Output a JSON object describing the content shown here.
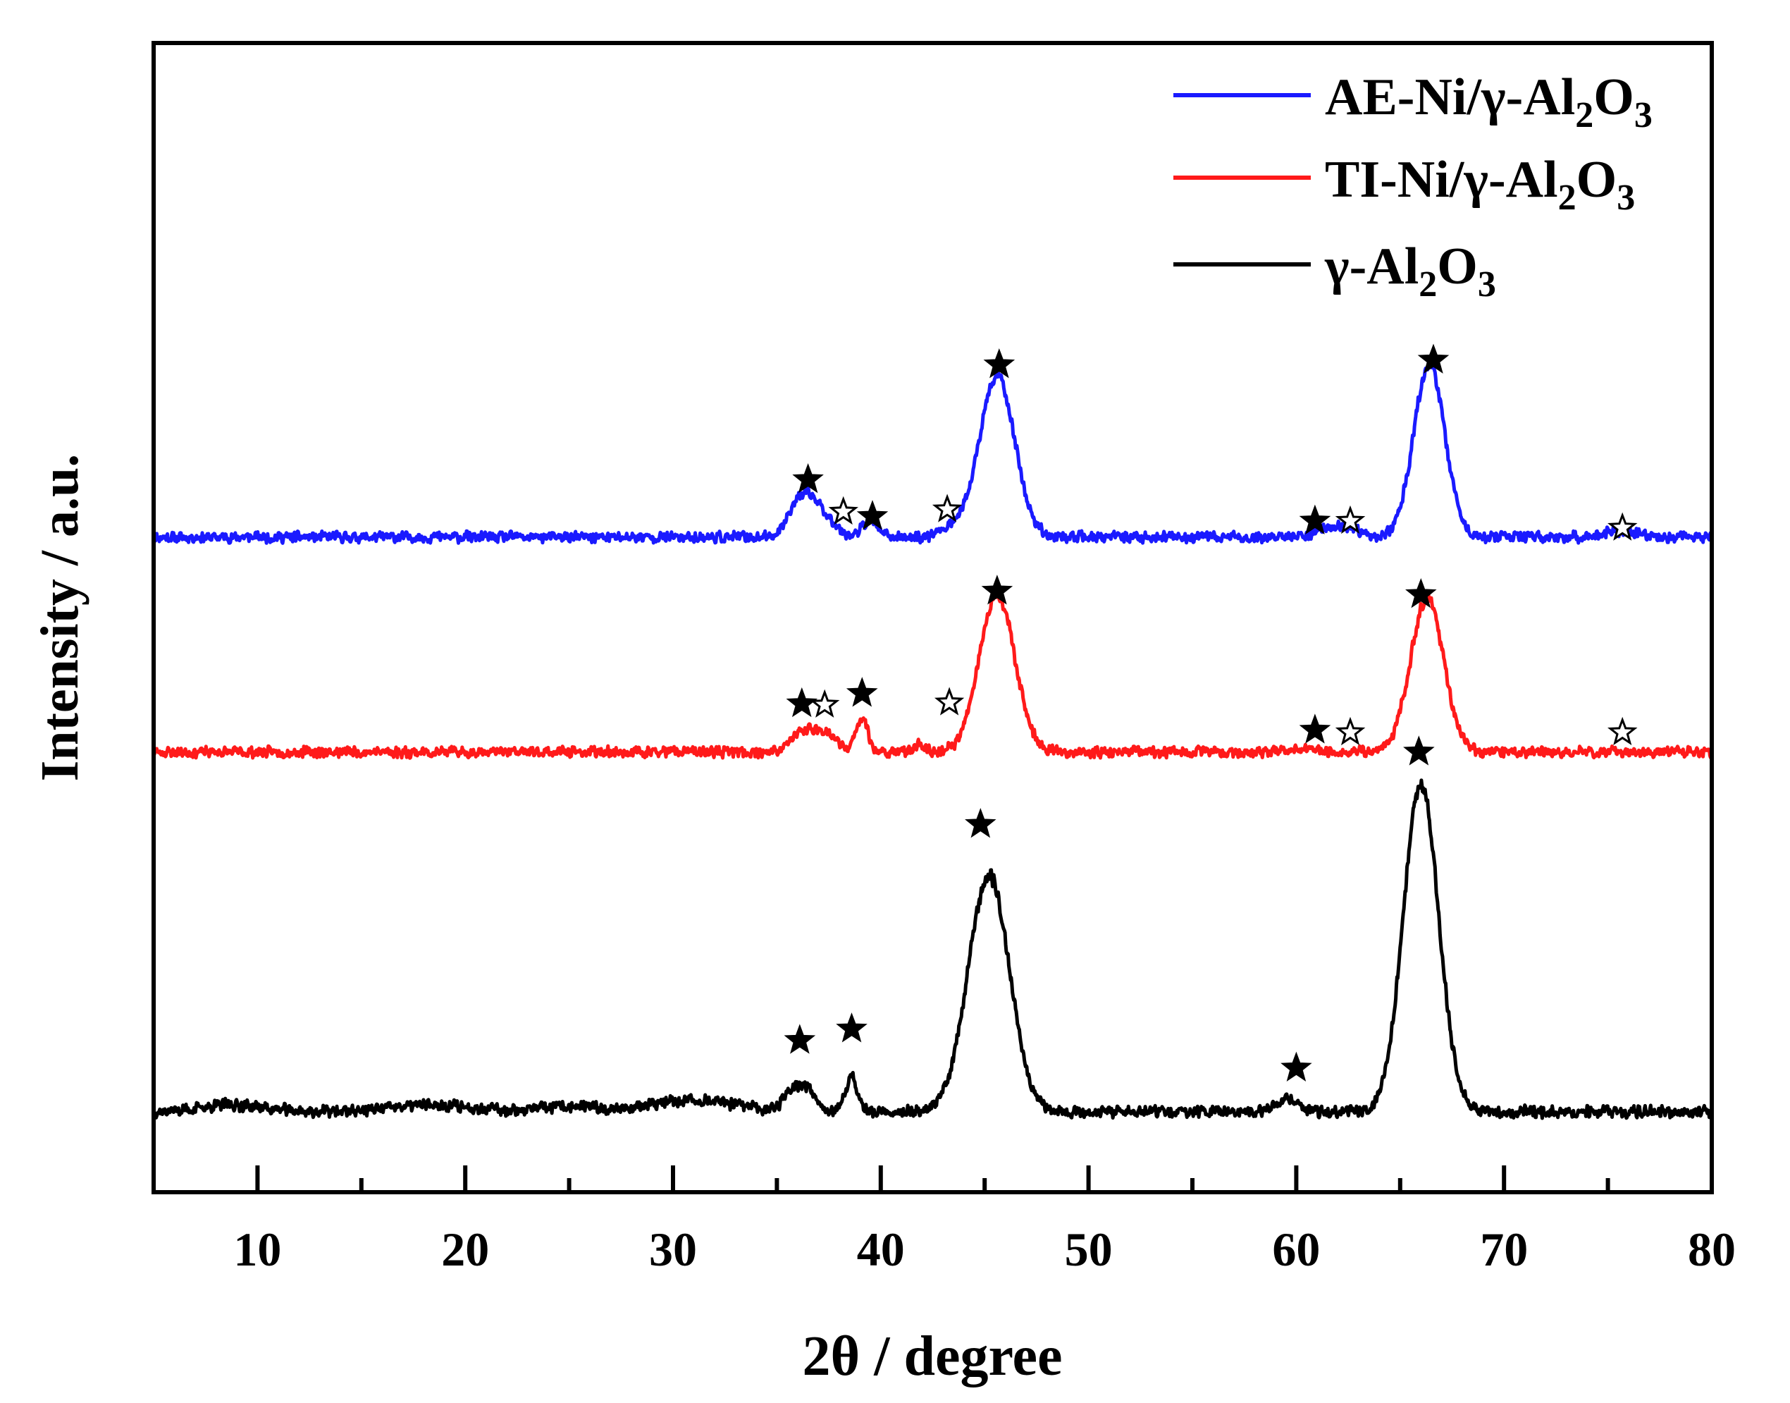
{
  "chart_data": {
    "type": "line",
    "title": "",
    "xlabel": "2θ / degree",
    "ylabel": "Intensity / a.u.",
    "xlim": [
      5,
      80
    ],
    "ylim": [
      0,
      100
    ],
    "x_major_ticks": [
      10,
      20,
      30,
      40,
      50,
      60,
      70,
      80
    ],
    "x_tick_labels": [
      "10",
      "20",
      "30",
      "40",
      "50",
      "60",
      "70",
      "80"
    ],
    "y_tick_labels": [],
    "grid": false,
    "legend_position": "top-right",
    "legend": [
      {
        "base": "AE-Ni/γ-Al",
        "sub1": "2",
        "mid": "O",
        "sub2": "3",
        "color": "#1a1aff"
      },
      {
        "base": "TI-Ni/γ-Al",
        "sub1": "2",
        "mid": "O",
        "sub2": "3",
        "color": "#ff1a1a"
      },
      {
        "base": "γ-Al",
        "sub1": "2",
        "mid": "O",
        "sub2": "3",
        "color": "#000000"
      }
    ],
    "series": [
      {
        "name": "AE-Ni/γ-Al2O3",
        "color": "#1a1aff",
        "baseline": 57.0,
        "noise": 0.55,
        "seed": 11,
        "peaks": [
          [
            35.8,
            1.8,
            0.45
          ],
          [
            36.6,
            3.2,
            0.55
          ],
          [
            37.6,
            1.0,
            0.5
          ],
          [
            39.5,
            1.6,
            0.35
          ],
          [
            43.4,
            0.8,
            0.6
          ],
          [
            45.6,
            14.0,
            0.85
          ],
          [
            61.5,
            0.7,
            0.7
          ],
          [
            62.5,
            0.6,
            0.5
          ],
          [
            66.4,
            15.0,
            0.75
          ],
          [
            75.5,
            0.5,
            0.8
          ]
        ],
        "markers": [
          {
            "x": 36.5,
            "y": 62.0,
            "type": "filled"
          },
          {
            "x": 38.2,
            "y": 59.2,
            "type": "open"
          },
          {
            "x": 39.6,
            "y": 58.8,
            "type": "filled"
          },
          {
            "x": 43.2,
            "y": 59.4,
            "type": "open"
          },
          {
            "x": 45.7,
            "y": 72.0,
            "type": "filled"
          },
          {
            "x": 60.9,
            "y": 58.4,
            "type": "filled"
          },
          {
            "x": 62.6,
            "y": 58.4,
            "type": "open"
          },
          {
            "x": 66.6,
            "y": 72.4,
            "type": "filled"
          },
          {
            "x": 75.7,
            "y": 57.8,
            "type": "open"
          }
        ]
      },
      {
        "name": "TI-Ni/γ-Al2O3",
        "color": "#ff1a1a",
        "baseline": 38.3,
        "noise": 0.55,
        "seed": 23,
        "peaks": [
          [
            36.0,
            1.0,
            0.5
          ],
          [
            36.8,
            1.4,
            0.6
          ],
          [
            37.5,
            0.9,
            0.5
          ],
          [
            39.1,
            3.0,
            0.28
          ],
          [
            41.8,
            0.6,
            0.3
          ],
          [
            45.6,
            13.8,
            0.85
          ],
          [
            60.5,
            0.4,
            0.5
          ],
          [
            66.3,
            13.4,
            0.8
          ]
        ],
        "markers": [
          {
            "x": 36.2,
            "y": 42.5,
            "type": "filled"
          },
          {
            "x": 37.3,
            "y": 42.4,
            "type": "open"
          },
          {
            "x": 39.1,
            "y": 43.4,
            "type": "filled"
          },
          {
            "x": 43.3,
            "y": 42.6,
            "type": "open"
          },
          {
            "x": 45.6,
            "y": 52.3,
            "type": "filled"
          },
          {
            "x": 60.9,
            "y": 40.2,
            "type": "filled"
          },
          {
            "x": 62.6,
            "y": 40.0,
            "type": "open"
          },
          {
            "x": 66.0,
            "y": 52.0,
            "type": "filled"
          },
          {
            "x": 75.7,
            "y": 40.0,
            "type": "open"
          }
        ]
      },
      {
        "name": "γ-Al2O3",
        "color": "#000000",
        "baseline": 7.0,
        "noise": 0.6,
        "seed": 37,
        "peaks": [
          [
            8.8,
            0.6,
            1.5
          ],
          [
            18.5,
            0.6,
            2.0
          ],
          [
            25.0,
            0.4,
            1.5
          ],
          [
            31.0,
            1.0,
            2.0
          ],
          [
            35.8,
            2.0,
            0.45
          ],
          [
            36.6,
            1.6,
            0.4
          ],
          [
            38.6,
            3.0,
            0.28
          ],
          [
            45.2,
            20.5,
            1.0
          ],
          [
            59.6,
            1.1,
            0.5
          ],
          [
            66.0,
            28.5,
            0.85
          ]
        ],
        "markers": [
          {
            "x": 36.1,
            "y": 13.2,
            "type": "filled"
          },
          {
            "x": 38.6,
            "y": 14.2,
            "type": "filled"
          },
          {
            "x": 44.8,
            "y": 32.0,
            "type": "filled"
          },
          {
            "x": 60.0,
            "y": 10.8,
            "type": "filled"
          },
          {
            "x": 65.9,
            "y": 38.3,
            "type": "filled"
          }
        ]
      }
    ]
  }
}
